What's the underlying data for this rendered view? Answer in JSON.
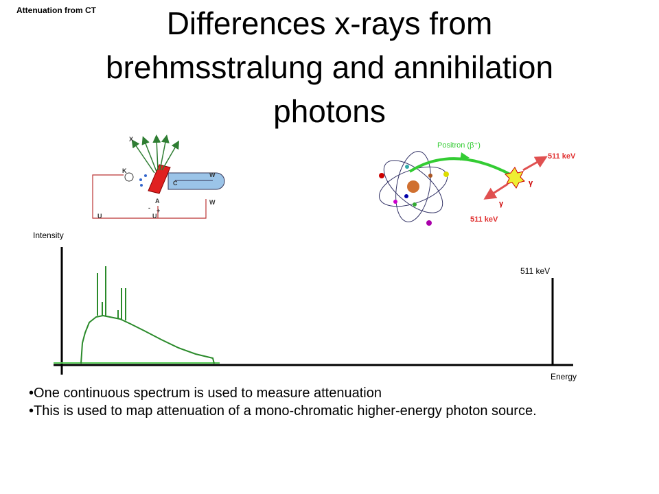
{
  "header": {
    "tag": "Attenuation from CT",
    "title": "Differences x-rays from brehmsstralung and annihilation photons"
  },
  "xray_tube": {
    "labels": [
      "X",
      "K",
      "A",
      "C",
      "W",
      "W",
      "U",
      "U",
      "-",
      "+"
    ]
  },
  "annihilation": {
    "positron": "Positron (β⁺)",
    "energy_top": "511 keV",
    "energy_bottom": "511 keV",
    "gamma_top": "γ",
    "gamma_bottom": "γ"
  },
  "spectrum": {
    "y_label": "Intensity",
    "x_label": "Energy",
    "peak_label": "511 keV"
  },
  "bullets": [
    "One continuous spectrum is used to measure attenuation",
    "This is used to map attenuation of a mono-chromatic higher-energy photon source."
  ]
}
